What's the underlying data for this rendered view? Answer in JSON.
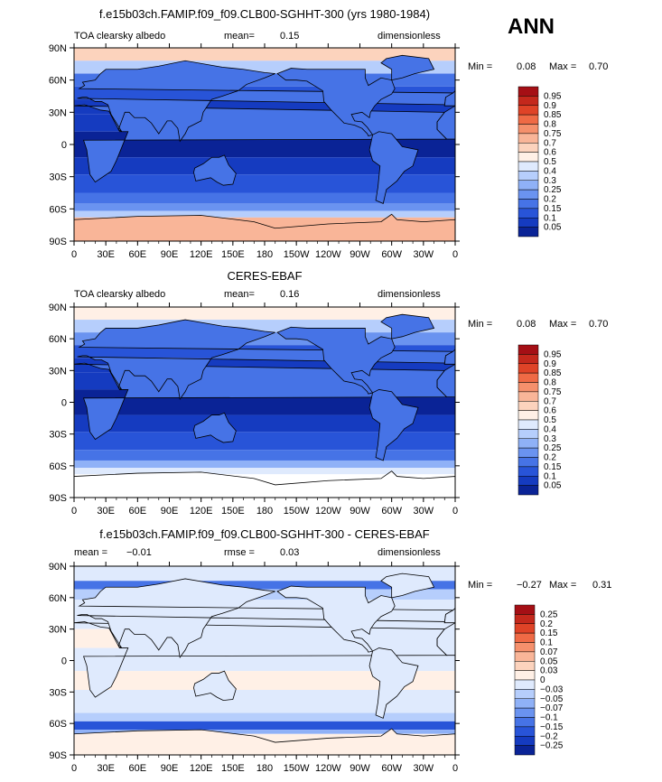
{
  "season": "ANN",
  "chart_data": [
    {
      "type": "heatmap",
      "title": "f.e15b03ch.FAMIP.f09_f09.CLB00-SGHHT-300 (yrs 1980-1984)",
      "left_label": "TOA clearsky albedo",
      "mean_label": "mean=",
      "mean_value": "0.15",
      "units": "dimensionless",
      "min_label": "Min =",
      "min_value": "0.08",
      "max_label": "Max =",
      "max_value": "0.70",
      "x_ticks": [
        "0",
        "30E",
        "60E",
        "90E",
        "120E",
        "150E",
        "180",
        "150W",
        "120W",
        "90W",
        "60W",
        "30W",
        "0"
      ],
      "y_ticks": [
        "90N",
        "60N",
        "30N",
        "0",
        "30S",
        "60S",
        "90S"
      ],
      "colorbar_levels": [
        "0.95",
        "0.9",
        "0.85",
        "0.8",
        "0.75",
        "0.7",
        "0.6",
        "0.5",
        "0.4",
        "0.3",
        "0.25",
        "0.2",
        "0.15",
        "0.1",
        "0.05"
      ],
      "colorbar_colors": [
        "#a50f15",
        "#c4281c",
        "#df4327",
        "#ef6a45",
        "#f5906c",
        "#f9b598",
        "#fcd3bd",
        "#fff0e6",
        "#dfeafd",
        "#b6cefc",
        "#8fb1f7",
        "#6a93f0",
        "#4673e6",
        "#2854d8",
        "#153bc0",
        "#0a2396"
      ]
    },
    {
      "type": "heatmap",
      "title": "CERES-EBAF",
      "left_label": "TOA clearsky albedo",
      "mean_label": "mean=",
      "mean_value": "0.16",
      "units": "dimensionless",
      "min_label": "Min =",
      "min_value": "0.08",
      "max_label": "Max =",
      "max_value": "0.70",
      "x_ticks": [
        "0",
        "30E",
        "60E",
        "90E",
        "120E",
        "150E",
        "180",
        "150W",
        "120W",
        "90W",
        "60W",
        "30W",
        "0"
      ],
      "y_ticks": [
        "90N",
        "60N",
        "30N",
        "0",
        "30S",
        "60S",
        "90S"
      ],
      "colorbar_levels": [
        "0.95",
        "0.9",
        "0.85",
        "0.8",
        "0.75",
        "0.7",
        "0.6",
        "0.5",
        "0.4",
        "0.3",
        "0.25",
        "0.2",
        "0.15",
        "0.1",
        "0.05"
      ],
      "colorbar_colors": [
        "#a50f15",
        "#c4281c",
        "#df4327",
        "#ef6a45",
        "#f5906c",
        "#f9b598",
        "#fcd3bd",
        "#fff0e6",
        "#dfeafd",
        "#b6cefc",
        "#8fb1f7",
        "#6a93f0",
        "#4673e6",
        "#2854d8",
        "#153bc0",
        "#0a2396"
      ]
    },
    {
      "type": "heatmap",
      "title": "f.e15b03ch.FAMIP.f09_f09.CLB00-SGHHT-300 - CERES-EBAF",
      "mean_label": "mean =",
      "mean_value": "−0.01",
      "rmse_label": "rmse =",
      "rmse_value": "0.03",
      "units": "dimensionless",
      "min_label": "Min =",
      "min_value": "−0.27",
      "max_label": "Max =",
      "max_value": "0.31",
      "x_ticks": [
        "0",
        "30E",
        "60E",
        "90E",
        "120E",
        "150E",
        "180",
        "150W",
        "120W",
        "90W",
        "60W",
        "30W",
        "0"
      ],
      "y_ticks": [
        "90N",
        "60N",
        "30N",
        "0",
        "30S",
        "60S",
        "90S"
      ],
      "colorbar_levels": [
        "0.25",
        "0.2",
        "0.15",
        "0.1",
        "0.07",
        "0.05",
        "0.03",
        "0",
        "−0.03",
        "−0.05",
        "−0.07",
        "−0.1",
        "−0.15",
        "−0.2",
        "−0.25"
      ],
      "colorbar_colors": [
        "#a50f15",
        "#c4281c",
        "#df4327",
        "#ef6a45",
        "#f5906c",
        "#f9b598",
        "#fcd3bd",
        "#fff0e6",
        "#dfeafd",
        "#b6cefc",
        "#8fb1f7",
        "#6a93f0",
        "#4673e6",
        "#2854d8",
        "#153bc0",
        "#0a2396"
      ]
    }
  ]
}
